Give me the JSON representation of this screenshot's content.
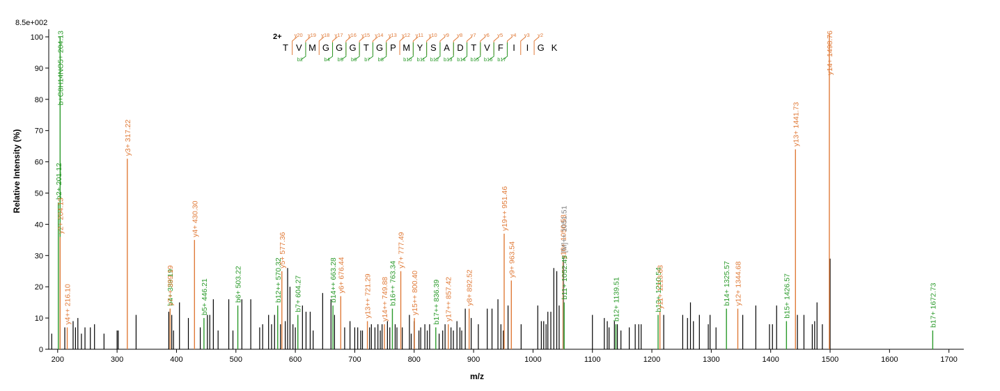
{
  "scale_label": "8.5e+002",
  "chart_data": {
    "type": "bar",
    "title": "",
    "xlabel": "m/z",
    "ylabel": "Relative   Intensity (%)",
    "xlim": [
      185,
      1725
    ],
    "ylim": [
      0,
      102
    ],
    "x_ticks": [
      200,
      300,
      400,
      500,
      600,
      700,
      800,
      900,
      1000,
      1100,
      1200,
      1300,
      1400,
      1500,
      1600,
      1700
    ],
    "y_ticks": [
      0,
      10,
      20,
      30,
      40,
      50,
      60,
      70,
      80,
      90,
      100
    ],
    "colors": {
      "b_ion": "#2a9a2a",
      "y_ion": "#e07b39",
      "precursor": "#808080",
      "unassigned": "#000000"
    },
    "labeled_peaks": [
      {
        "x": 201.12,
        "y": 47,
        "label": "b2+ 201.12",
        "type": "b"
      },
      {
        "x": 204.13,
        "y": 100,
        "label": "b+C8H14NO5+ 204.13",
        "type": "b"
      },
      {
        "x": 204.13,
        "y": 36,
        "label": "y2+ 204.13",
        "type": "y"
      },
      {
        "x": 216.1,
        "y": 7,
        "label": "y4++ 216.10",
        "type": "y"
      },
      {
        "x": 317.22,
        "y": 61,
        "label": "y3+ 317.22",
        "type": "y"
      },
      {
        "x": 389.19,
        "y": 13,
        "label": "b4+ 389.19",
        "type": "b"
      },
      {
        "x": 389.19,
        "y": 13,
        "label": "y7++ 389.19",
        "type": "y"
      },
      {
        "x": 430.3,
        "y": 35,
        "label": "y4+ 430.30",
        "type": "y"
      },
      {
        "x": 446.21,
        "y": 10,
        "label": "b5+ 446.21",
        "type": "b"
      },
      {
        "x": 503.22,
        "y": 14,
        "label": "b6+ 503.22",
        "type": "b"
      },
      {
        "x": 570.32,
        "y": 14,
        "label": "b12++ 570.32",
        "type": "b"
      },
      {
        "x": 577.36,
        "y": 25,
        "label": "y5+ 577.36",
        "type": "y"
      },
      {
        "x": 604.27,
        "y": 11,
        "label": "b7+ 604.27",
        "type": "b"
      },
      {
        "x": 663.28,
        "y": 14,
        "label": "b14++ 663.28",
        "type": "b"
      },
      {
        "x": 676.44,
        "y": 17,
        "label": "y6+ 676.44",
        "type": "y"
      },
      {
        "x": 721.29,
        "y": 9,
        "label": "y13++ 721.29",
        "type": "y"
      },
      {
        "x": 749.88,
        "y": 8,
        "label": "y14++ 749.88",
        "type": "y"
      },
      {
        "x": 763.34,
        "y": 13,
        "label": "b16++ 763.34",
        "type": "b"
      },
      {
        "x": 777.49,
        "y": 25,
        "label": "y7+ 777.49",
        "type": "y"
      },
      {
        "x": 800.4,
        "y": 10,
        "label": "y15++ 800.40",
        "type": "y"
      },
      {
        "x": 836.39,
        "y": 7,
        "label": "b17++ 836.39",
        "type": "b"
      },
      {
        "x": 857.42,
        "y": 8,
        "label": "y17++ 857.42",
        "type": "y"
      },
      {
        "x": 892.52,
        "y": 13,
        "label": "y8+ 892.52",
        "type": "y"
      },
      {
        "x": 951.46,
        "y": 37,
        "label": "y19++ 951.46",
        "type": "y"
      },
      {
        "x": 963.54,
        "y": 22,
        "label": "y9+ 963.54",
        "type": "y"
      },
      {
        "x": 1050.53,
        "y": 28,
        "label": "y10+ 1050.53",
        "type": "y"
      },
      {
        "x": 1051.51,
        "y": 30,
        "label": "[M]++ 1051.51",
        "type": "precursor"
      },
      {
        "x": 1052.45,
        "y": 15,
        "label": "b11+ 1052.45",
        "type": "b"
      },
      {
        "x": 1139.51,
        "y": 8,
        "label": "b12+ 1139.51",
        "type": "b"
      },
      {
        "x": 1210.54,
        "y": 11,
        "label": "b13+ 1210.54",
        "type": "b"
      },
      {
        "x": 1213.63,
        "y": 12,
        "label": "y11+ 1213.63",
        "type": "y"
      },
      {
        "x": 1325.57,
        "y": 13,
        "label": "b14+ 1325.57",
        "type": "b"
      },
      {
        "x": 1344.68,
        "y": 13,
        "label": "y12+ 1344.68",
        "type": "y"
      },
      {
        "x": 1426.57,
        "y": 9,
        "label": "b15+ 1426.57",
        "type": "b"
      },
      {
        "x": 1441.73,
        "y": 64,
        "label": "y13+ 1441.73",
        "type": "y"
      },
      {
        "x": 1498.76,
        "y": 101,
        "label": "y14+ 1498.76",
        "type": "y"
      },
      {
        "x": 1672.73,
        "y": 6,
        "label": "b17+ 1672.73",
        "type": "b"
      }
    ],
    "unlabeled_peaks": [
      [
        190,
        5
      ],
      [
        212,
        7
      ],
      [
        226,
        9
      ],
      [
        230,
        7
      ],
      [
        234,
        10
      ],
      [
        240,
        5
      ],
      [
        246,
        7
      ],
      [
        255,
        7
      ],
      [
        262,
        8
      ],
      [
        278,
        5
      ],
      [
        300,
        6
      ],
      [
        302,
        6
      ],
      [
        332,
        11
      ],
      [
        387,
        12
      ],
      [
        392,
        11
      ],
      [
        395,
        6
      ],
      [
        405,
        15
      ],
      [
        420,
        10
      ],
      [
        440,
        7
      ],
      [
        452,
        11
      ],
      [
        456,
        11
      ],
      [
        462,
        16
      ],
      [
        470,
        6
      ],
      [
        488,
        16
      ],
      [
        495,
        6
      ],
      [
        510,
        16
      ],
      [
        525,
        16
      ],
      [
        540,
        7
      ],
      [
        545,
        8
      ],
      [
        555,
        11
      ],
      [
        560,
        8
      ],
      [
        565,
        11
      ],
      [
        575,
        8
      ],
      [
        583,
        9
      ],
      [
        587,
        26
      ],
      [
        591,
        20
      ],
      [
        596,
        8
      ],
      [
        600,
        7
      ],
      [
        612,
        14
      ],
      [
        618,
        12
      ],
      [
        625,
        12
      ],
      [
        630,
        6
      ],
      [
        646,
        18
      ],
      [
        660,
        16
      ],
      [
        666,
        11
      ],
      [
        683,
        7
      ],
      [
        692,
        9
      ],
      [
        700,
        7
      ],
      [
        705,
        7
      ],
      [
        710,
        6
      ],
      [
        713,
        6
      ],
      [
        725,
        7
      ],
      [
        728,
        8
      ],
      [
        734,
        7
      ],
      [
        739,
        8
      ],
      [
        743,
        6
      ],
      [
        746,
        8
      ],
      [
        755,
        9
      ],
      [
        759,
        7
      ],
      [
        768,
        8
      ],
      [
        771,
        7
      ],
      [
        780,
        7
      ],
      [
        792,
        11
      ],
      [
        795,
        5
      ],
      [
        800,
        9
      ],
      [
        808,
        6
      ],
      [
        811,
        7
      ],
      [
        818,
        8
      ],
      [
        822,
        6
      ],
      [
        826,
        8
      ],
      [
        842,
        5
      ],
      [
        848,
        6
      ],
      [
        852,
        8
      ],
      [
        862,
        7
      ],
      [
        866,
        6
      ],
      [
        872,
        9
      ],
      [
        877,
        7
      ],
      [
        880,
        6
      ],
      [
        886,
        13
      ],
      [
        896,
        10
      ],
      [
        908,
        8
      ],
      [
        923,
        13
      ],
      [
        931,
        13
      ],
      [
        941,
        16
      ],
      [
        946,
        8
      ],
      [
        950,
        6
      ],
      [
        958,
        14
      ],
      [
        980,
        8
      ],
      [
        1008,
        14
      ],
      [
        1014,
        9
      ],
      [
        1018,
        9
      ],
      [
        1022,
        8
      ],
      [
        1025,
        12
      ],
      [
        1030,
        12
      ],
      [
        1035,
        26
      ],
      [
        1040,
        25
      ],
      [
        1044,
        14
      ],
      [
        1100,
        11
      ],
      [
        1120,
        10
      ],
      [
        1125,
        9
      ],
      [
        1128,
        7
      ],
      [
        1137,
        9
      ],
      [
        1142,
        8
      ],
      [
        1148,
        6
      ],
      [
        1162,
        7
      ],
      [
        1172,
        8
      ],
      [
        1178,
        8
      ],
      [
        1182,
        8
      ],
      [
        1220,
        11
      ],
      [
        1252,
        11
      ],
      [
        1260,
        10
      ],
      [
        1265,
        15
      ],
      [
        1270,
        9
      ],
      [
        1280,
        11
      ],
      [
        1295,
        8
      ],
      [
        1298,
        11
      ],
      [
        1308,
        7
      ],
      [
        1353,
        11
      ],
      [
        1375,
        14
      ],
      [
        1398,
        8
      ],
      [
        1403,
        8
      ],
      [
        1410,
        14
      ],
      [
        1445,
        11
      ],
      [
        1456,
        11
      ],
      [
        1470,
        8
      ],
      [
        1474,
        9
      ],
      [
        1478,
        15
      ],
      [
        1487,
        8
      ],
      [
        1500,
        29
      ]
    ],
    "peak_labels_at_top": [
      "b+C8H14NO5+ 204.13",
      "y14+ 1498.76"
    ]
  },
  "sequence": {
    "charge": "2+",
    "residues": [
      "T",
      "V",
      "M",
      "G",
      "G",
      "G",
      "T",
      "G",
      "P",
      "M",
      "Y",
      "S",
      "A",
      "D",
      "T",
      "V",
      "F",
      "I",
      "I",
      "G",
      "K"
    ],
    "y_ions": [
      {
        "after": 1,
        "label": "y20"
      },
      {
        "after": 2,
        "label": "y19"
      },
      {
        "after": 3,
        "label": "y18"
      },
      {
        "after": 4,
        "label": "y17"
      },
      {
        "after": 5,
        "label": "y16"
      },
      {
        "after": 6,
        "label": "y15"
      },
      {
        "after": 7,
        "label": "y14"
      },
      {
        "after": 8,
        "label": "y13"
      },
      {
        "after": 9,
        "label": "y12"
      },
      {
        "after": 10,
        "label": "y11"
      },
      {
        "after": 11,
        "label": "y10"
      },
      {
        "after": 12,
        "label": "y9"
      },
      {
        "after": 13,
        "label": "y8"
      },
      {
        "after": 14,
        "label": "y7"
      },
      {
        "after": 15,
        "label": "y6"
      },
      {
        "after": 16,
        "label": "y5"
      },
      {
        "after": 17,
        "label": "y4"
      },
      {
        "after": 18,
        "label": "y3"
      },
      {
        "after": 19,
        "label": "y2"
      }
    ],
    "b_ions": [
      {
        "after": 2,
        "label": "b2"
      },
      {
        "after": 4,
        "label": "b4"
      },
      {
        "after": 5,
        "label": "b5"
      },
      {
        "after": 6,
        "label": "b6"
      },
      {
        "after": 7,
        "label": "b7"
      },
      {
        "after": 8,
        "label": "b8"
      },
      {
        "after": 10,
        "label": "b10"
      },
      {
        "after": 11,
        "label": "b11"
      },
      {
        "after": 12,
        "label": "b12"
      },
      {
        "after": 13,
        "label": "b13"
      },
      {
        "after": 14,
        "label": "b14"
      },
      {
        "after": 15,
        "label": "b15"
      },
      {
        "after": 16,
        "label": "b16"
      },
      {
        "after": 17,
        "label": "b17"
      }
    ]
  }
}
